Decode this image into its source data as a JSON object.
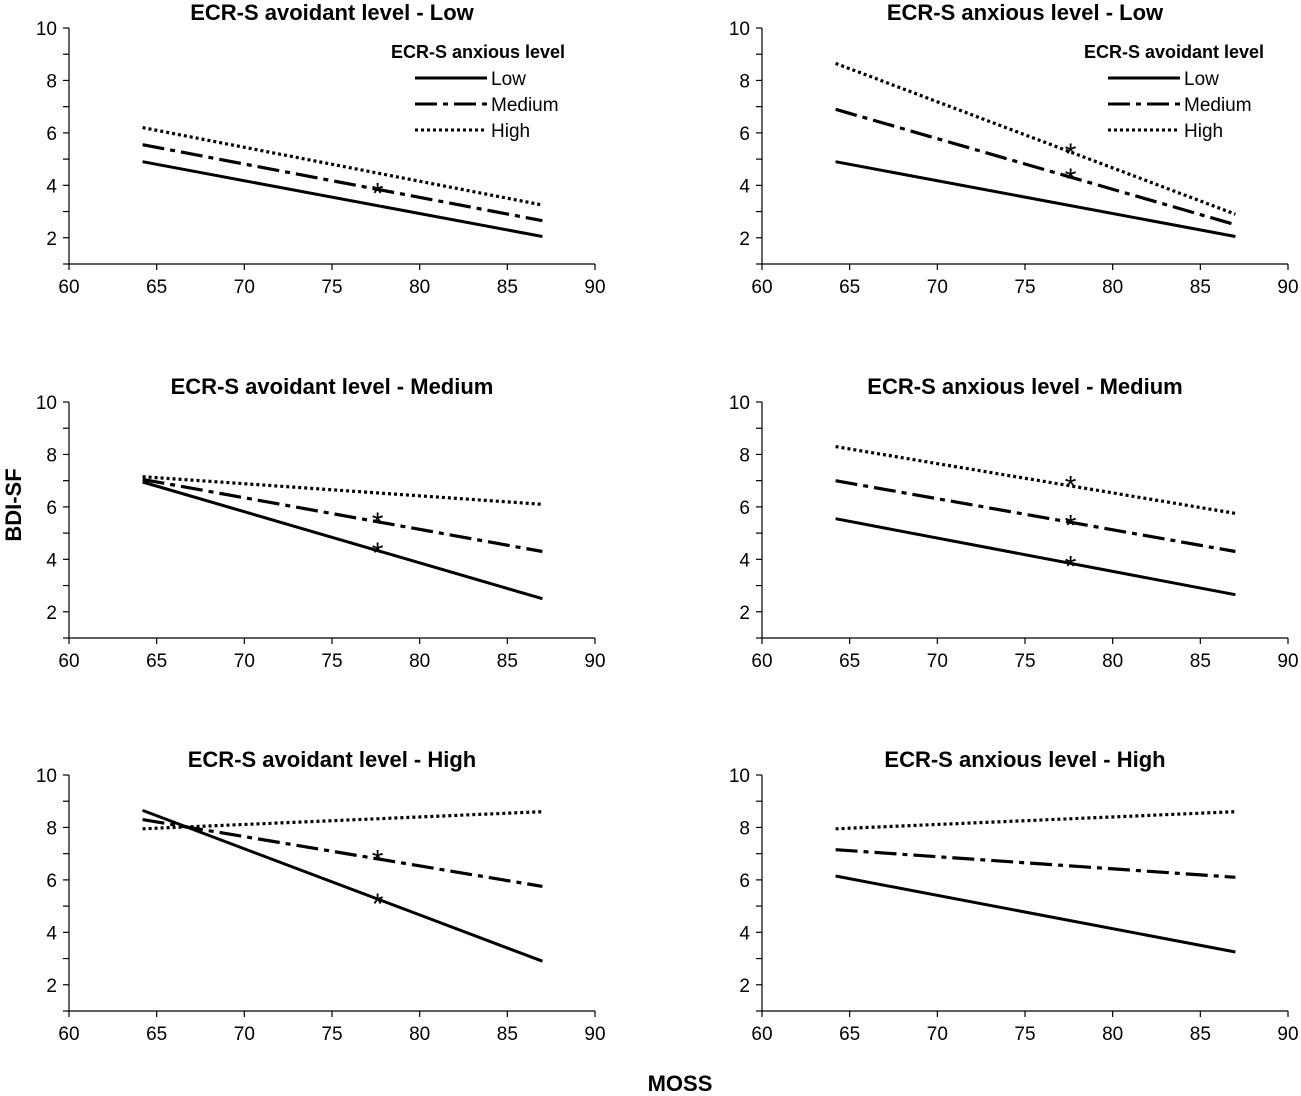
{
  "figure": {
    "xlabel": "MOSS",
    "ylabel": "BDI-SF"
  },
  "chart_data": [
    {
      "type": "line",
      "title": "ECR-S avoidant level - Low",
      "legend_title": "ECR-S anxious level",
      "legend_position": "top-right",
      "x": [
        64.2,
        87
      ],
      "xlim": [
        60,
        90
      ],
      "ylim": [
        1,
        10
      ],
      "xticks": [
        "60",
        "65",
        "70",
        "75",
        "80",
        "85",
        "90"
      ],
      "yticks": [
        "2",
        "4",
        "6",
        "8",
        "10"
      ],
      "series": [
        {
          "name": "Low",
          "style": "solid",
          "values": [
            4.9,
            2.05
          ]
        },
        {
          "name": "Medium",
          "style": "dashdot",
          "values": [
            5.55,
            2.65
          ]
        },
        {
          "name": "High",
          "style": "dotted",
          "values": [
            6.2,
            3.25
          ]
        }
      ],
      "markers": [
        {
          "x": 77.6,
          "y": 3.8,
          "symbol": "*"
        }
      ]
    },
    {
      "type": "line",
      "title": "ECR-S anxious level - Low",
      "legend_title": "ECR-S avoidant level",
      "legend_position": "top-right",
      "x": [
        64.2,
        87
      ],
      "xlim": [
        60,
        90
      ],
      "ylim": [
        1,
        10
      ],
      "xticks": [
        "60",
        "65",
        "70",
        "75",
        "80",
        "85",
        "90"
      ],
      "yticks": [
        "2",
        "4",
        "6",
        "8",
        "10"
      ],
      "series": [
        {
          "name": "Low",
          "style": "solid",
          "values": [
            4.9,
            2.05
          ]
        },
        {
          "name": "Medium",
          "style": "dashdot",
          "values": [
            6.9,
            2.5
          ]
        },
        {
          "name": "High",
          "style": "dotted",
          "values": [
            8.65,
            2.9
          ]
        }
      ],
      "markers": [
        {
          "x": 77.6,
          "y": 5.3,
          "symbol": "*"
        },
        {
          "x": 77.6,
          "y": 4.35,
          "symbol": "*"
        }
      ]
    },
    {
      "type": "line",
      "title": "ECR-S avoidant level - Medium",
      "x": [
        64.2,
        87
      ],
      "xlim": [
        60,
        90
      ],
      "ylim": [
        1,
        10
      ],
      "xticks": [
        "60",
        "65",
        "70",
        "75",
        "80",
        "85",
        "90"
      ],
      "yticks": [
        "2",
        "4",
        "6",
        "8",
        "10"
      ],
      "series": [
        {
          "style": "solid",
          "values": [
            6.95,
            2.5
          ]
        },
        {
          "style": "dashdot",
          "values": [
            7.05,
            4.3
          ]
        },
        {
          "style": "dotted",
          "values": [
            7.15,
            6.1
          ]
        }
      ],
      "markers": [
        {
          "x": 77.6,
          "y": 5.5,
          "symbol": "*"
        },
        {
          "x": 77.6,
          "y": 4.35,
          "symbol": "*"
        }
      ]
    },
    {
      "type": "line",
      "title": "ECR-S anxious level - Medium",
      "x": [
        64.2,
        87
      ],
      "xlim": [
        60,
        90
      ],
      "ylim": [
        1,
        10
      ],
      "xticks": [
        "60",
        "65",
        "70",
        "75",
        "80",
        "85",
        "90"
      ],
      "yticks": [
        "2",
        "4",
        "6",
        "8",
        "10"
      ],
      "series": [
        {
          "style": "solid",
          "values": [
            5.55,
            2.65
          ]
        },
        {
          "style": "dashdot",
          "values": [
            7.0,
            4.3
          ]
        },
        {
          "style": "dotted",
          "values": [
            8.3,
            5.75
          ]
        }
      ],
      "markers": [
        {
          "x": 77.6,
          "y": 6.9,
          "symbol": "*"
        },
        {
          "x": 77.6,
          "y": 5.4,
          "symbol": "*"
        },
        {
          "x": 77.6,
          "y": 3.85,
          "symbol": "*"
        }
      ]
    },
    {
      "type": "line",
      "title": "ECR-S avoidant level - High",
      "x": [
        64.2,
        87
      ],
      "xlim": [
        60,
        90
      ],
      "ylim": [
        1,
        10
      ],
      "xticks": [
        "60",
        "65",
        "70",
        "75",
        "80",
        "85",
        "90"
      ],
      "yticks": [
        "2",
        "4",
        "6",
        "8",
        "10"
      ],
      "series": [
        {
          "style": "solid",
          "values": [
            8.65,
            2.9
          ]
        },
        {
          "style": "dashdot",
          "values": [
            8.3,
            5.75
          ]
        },
        {
          "style": "dotted",
          "values": [
            7.95,
            8.6
          ]
        }
      ],
      "markers": [
        {
          "x": 77.6,
          "y": 6.85,
          "symbol": "*"
        },
        {
          "x": 77.6,
          "y": 5.2,
          "symbol": "*"
        }
      ]
    },
    {
      "type": "line",
      "title": "ECR-S anxious level - High",
      "x": [
        64.2,
        87
      ],
      "xlim": [
        60,
        90
      ],
      "ylim": [
        1,
        10
      ],
      "xticks": [
        "60",
        "65",
        "70",
        "75",
        "80",
        "85",
        "90"
      ],
      "yticks": [
        "2",
        "4",
        "6",
        "8",
        "10"
      ],
      "series": [
        {
          "style": "solid",
          "values": [
            6.15,
            3.25
          ]
        },
        {
          "style": "dashdot",
          "values": [
            7.15,
            6.1
          ]
        },
        {
          "style": "dotted",
          "values": [
            7.95,
            8.6
          ]
        }
      ],
      "markers": []
    }
  ]
}
